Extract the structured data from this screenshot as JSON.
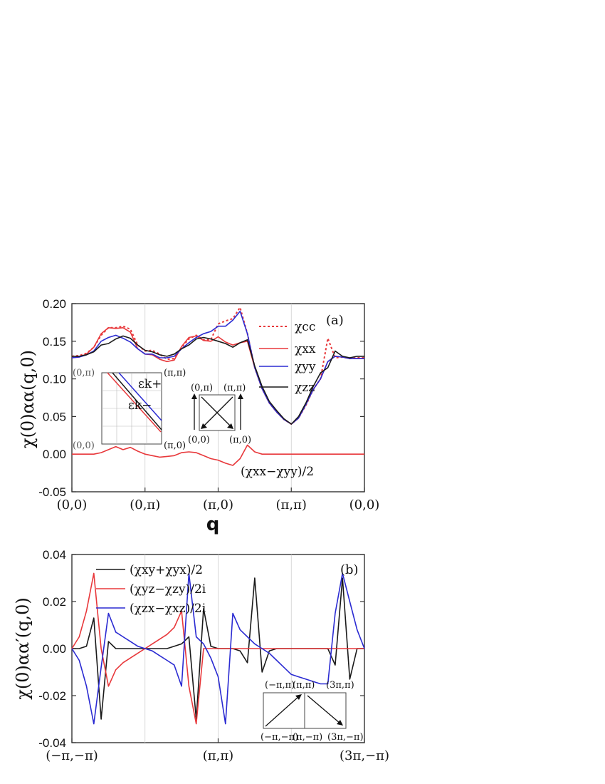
{
  "chart_data": [
    {
      "panel_label": "(a)",
      "type": "line",
      "xlabel": "q",
      "ylabel": "χ(0)αα(q,0)",
      "ylim": [
        -0.05,
        0.2
      ],
      "yticks": [
        "0.20",
        "0.15",
        "0.10",
        "0.05",
        "0.00",
        "-0.05"
      ],
      "xticks": [
        "(0,0)",
        "(0,π)",
        "(π,0)",
        "(π,π)",
        "(0,0)"
      ],
      "x": [
        0.0,
        0.1,
        0.2,
        0.3,
        0.4,
        0.5,
        0.6,
        0.7,
        0.8,
        0.9,
        1.0,
        1.1,
        1.2,
        1.3,
        1.4,
        1.5,
        1.6,
        1.7,
        1.8,
        1.9,
        2.0,
        2.1,
        2.2,
        2.3,
        2.4,
        2.5,
        2.6,
        2.7,
        2.8,
        2.9,
        3.0,
        3.1,
        3.2,
        3.3,
        3.4,
        3.5,
        3.6,
        3.7,
        3.8,
        3.9,
        4.0
      ],
      "series": [
        {
          "name": "χcc",
          "color": "#e8383b",
          "dash": "dotted",
          "values": [
            0.13,
            0.131,
            0.134,
            0.142,
            0.158,
            0.168,
            0.168,
            0.17,
            0.166,
            0.145,
            0.137,
            0.138,
            0.133,
            0.126,
            0.127,
            0.142,
            0.153,
            0.158,
            0.152,
            0.152,
            0.173,
            0.177,
            0.18,
            0.195,
            0.16,
            0.115,
            0.087,
            0.068,
            0.056,
            0.046,
            0.04,
            0.048,
            0.065,
            0.086,
            0.1,
            0.154,
            0.128,
            0.129,
            0.127,
            0.128,
            0.128
          ]
        },
        {
          "name": "χxx",
          "color": "#e8383b",
          "dash": "solid",
          "values": [
            0.128,
            0.129,
            0.133,
            0.142,
            0.16,
            0.168,
            0.167,
            0.168,
            0.162,
            0.14,
            0.133,
            0.132,
            0.126,
            0.123,
            0.125,
            0.143,
            0.155,
            0.157,
            0.151,
            0.15,
            0.156,
            0.149,
            0.145,
            0.148,
            0.15,
            0.115,
            0.087,
            0.068,
            0.056,
            0.046,
            0.04,
            0.048,
            0.066,
            0.086,
            0.1,
            0.123,
            0.13,
            0.129,
            0.127,
            0.127,
            0.127
          ]
        },
        {
          "name": "χyy",
          "color": "#2b2bd2",
          "dash": "solid",
          "values": [
            0.128,
            0.129,
            0.132,
            0.137,
            0.15,
            0.155,
            0.158,
            0.154,
            0.149,
            0.14,
            0.133,
            0.133,
            0.128,
            0.128,
            0.13,
            0.14,
            0.148,
            0.155,
            0.16,
            0.163,
            0.17,
            0.17,
            0.178,
            0.19,
            0.16,
            0.115,
            0.087,
            0.068,
            0.056,
            0.046,
            0.04,
            0.048,
            0.066,
            0.086,
            0.1,
            0.123,
            0.13,
            0.129,
            0.127,
            0.127,
            0.127
          ]
        },
        {
          "name": "χzz",
          "color": "#1a1a1a",
          "dash": "solid",
          "values": [
            0.13,
            0.13,
            0.132,
            0.136,
            0.145,
            0.147,
            0.153,
            0.157,
            0.154,
            0.145,
            0.138,
            0.136,
            0.132,
            0.13,
            0.133,
            0.14,
            0.145,
            0.153,
            0.155,
            0.153,
            0.15,
            0.147,
            0.142,
            0.148,
            0.152,
            0.117,
            0.09,
            0.07,
            0.058,
            0.047,
            0.04,
            0.05,
            0.068,
            0.09,
            0.108,
            0.115,
            0.137,
            0.13,
            0.128,
            0.13,
            0.13
          ]
        },
        {
          "name": "(χxx−χyy)/2",
          "color": "#e8383b",
          "dash": "solid",
          "values": [
            0,
            0,
            0,
            0,
            0.002,
            0.006,
            0.01,
            0.006,
            0.009,
            0.004,
            0,
            -0.002,
            -0.004,
            -0.003,
            -0.002,
            0.002,
            0.003,
            0.002,
            -0.002,
            -0.006,
            -0.008,
            -0.012,
            -0.015,
            -0.006,
            0.012,
            0.003,
            0,
            0,
            0,
            0,
            0,
            0,
            0,
            0,
            0,
            0,
            0,
            0,
            0,
            0,
            0
          ]
        }
      ],
      "legend": [
        "χcc",
        "χxx",
        "χyy",
        "χzz"
      ],
      "annotation": "(χxx−χyy)/2",
      "inset_band": {
        "corners": [
          "(0,π)",
          "(π,π)",
          "(0,0)",
          "(π,0)"
        ],
        "labels": [
          "εk+",
          "εk−"
        ]
      },
      "inset_path": {
        "labels": [
          "(0,π)",
          "(π,π)",
          "(0,0)",
          "(π,0)"
        ]
      }
    },
    {
      "panel_label": "(b)",
      "type": "line",
      "xlabel": "q",
      "ylabel": "χ(0)αα′(q,0)",
      "ylim": [
        -0.04,
        0.04
      ],
      "yticks": [
        "0.04",
        "0.02",
        "0.00",
        "-0.02",
        "-0.04"
      ],
      "xticks": [
        "(−π,−π)",
        "(π,π)",
        "(3π,−π)"
      ],
      "x": [
        0.0,
        0.1,
        0.2,
        0.3,
        0.4,
        0.5,
        0.6,
        0.7,
        0.8,
        0.9,
        1.0,
        1.1,
        1.2,
        1.3,
        1.4,
        1.5,
        1.6,
        1.7,
        1.8,
        1.9,
        2.0,
        2.1,
        2.2,
        2.3,
        2.4,
        2.5,
        2.6,
        2.7,
        2.8,
        2.9,
        3.0,
        3.1,
        3.2,
        3.3,
        3.4,
        3.5,
        3.6,
        3.7,
        3.8,
        3.9,
        4.0
      ],
      "series": [
        {
          "name": "(χxy+χyx)/2",
          "color": "#1a1a1a",
          "dash": "solid",
          "values": [
            0,
            0,
            0.001,
            0.013,
            -0.03,
            0.003,
            0,
            0,
            0,
            0,
            0,
            0,
            0,
            0,
            0.001,
            0.002,
            0.005,
            -0.03,
            0.017,
            0.001,
            0,
            0,
            0,
            -0.001,
            -0.006,
            0.03,
            -0.01,
            -0.001,
            0,
            0,
            0,
            0,
            0,
            0,
            0,
            0,
            -0.007,
            0.03,
            -0.013,
            0,
            0
          ]
        },
        {
          "name": "(χyz−χzy)/2i",
          "color": "#e8383b",
          "dash": "solid",
          "values": [
            0,
            0.005,
            0.016,
            0.032,
            0,
            -0.016,
            -0.009,
            -0.006,
            -0.004,
            -0.002,
            0,
            0.002,
            0.004,
            0.006,
            0.009,
            0.016,
            -0.016,
            -0.032,
            0,
            0,
            0,
            0,
            0,
            0,
            0,
            0,
            0,
            0,
            0,
            0,
            0,
            0,
            0,
            0,
            0,
            0,
            0,
            0,
            0,
            0,
            0
          ]
        },
        {
          "name": "(χzx−χxz)/2i",
          "color": "#2b2bd2",
          "dash": "solid",
          "values": [
            0,
            -0.005,
            -0.016,
            -0.032,
            -0.008,
            0.015,
            0.007,
            0.005,
            0.003,
            0.001,
            0,
            -0.001,
            -0.003,
            -0.005,
            -0.007,
            -0.016,
            0.032,
            0.005,
            0.002,
            -0.004,
            -0.012,
            -0.032,
            0.015,
            0.008,
            0.005,
            0.002,
            0,
            -0.002,
            -0.005,
            -0.008,
            -0.011,
            -0.012,
            -0.013,
            -0.014,
            -0.015,
            -0.015,
            0.015,
            0.032,
            0.02,
            0.008,
            0
          ]
        }
      ],
      "legend": [
        "(χxy+χyx)/2",
        "(χyz−χzy)/2i",
        "(χzx−χxz)/2i"
      ],
      "inset_path": {
        "labels": [
          "(−π,π)",
          "(π,π)",
          "(3π,π)",
          "(−π,−π)",
          "(π,−π)",
          "(3π,−π)"
        ]
      }
    }
  ]
}
